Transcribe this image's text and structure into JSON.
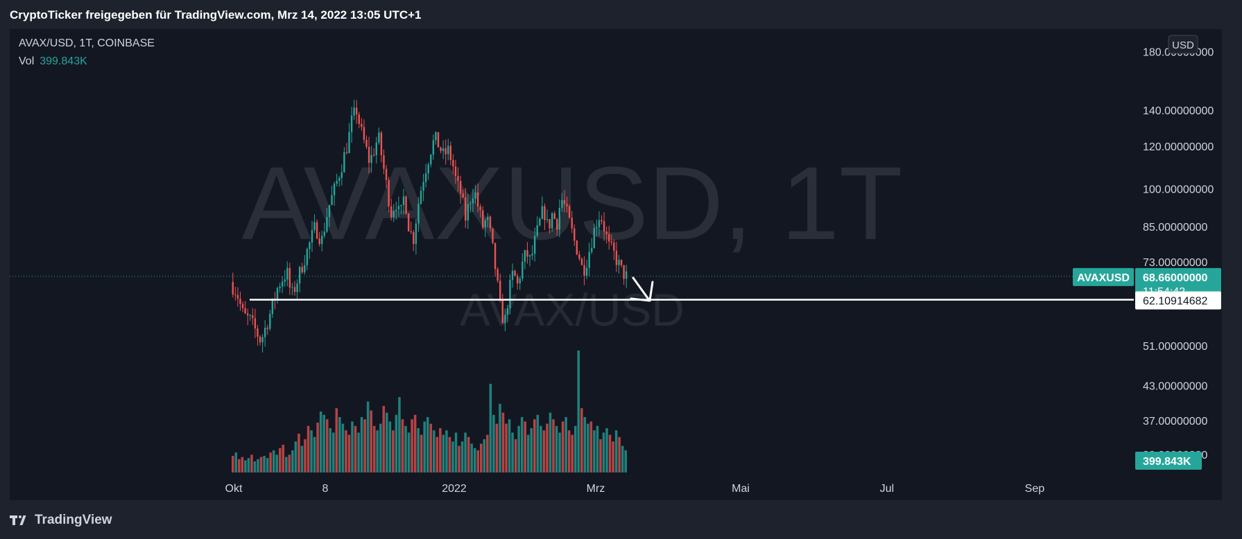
{
  "header": {
    "share_text": "CryptoTicker freigegeben für TradingView.com, Mrz 14, 2022 13:05 UTC+1"
  },
  "legend": {
    "symbol_line": "AVAX/USD, 1T, COINBASE",
    "vol_label": "Vol",
    "vol_value": "399.843K"
  },
  "watermark": {
    "big": "AVAXUSD, 1T",
    "small": "AVAX/USD"
  },
  "currency_button": "USD",
  "footer": {
    "brand": "TradingView"
  },
  "colors": {
    "background": "#131722",
    "frame": "#1e222d",
    "up": "#26a69a",
    "down": "#ef5350",
    "axis_text": "#d1d4dc",
    "annotation": "#ffffff"
  },
  "chart_data": {
    "type": "candlestick",
    "symbol": "AVAX/USD",
    "interval": "1T",
    "exchange": "COINBASE",
    "x_axis_labels": [
      "Okt",
      "8",
      "2022",
      "Mrz",
      "Mai",
      "Jul",
      "Sep"
    ],
    "y_axis": {
      "scale": "log",
      "tick_labels": [
        "180.00000000",
        "140.00000000",
        "120.00000000",
        "100.00000000",
        "85.00000000",
        "73.00000000",
        "51.00000000",
        "43.00000000",
        "37.00000000",
        "32.00000000"
      ],
      "tick_values": [
        180,
        140,
        120,
        100,
        85,
        73,
        51,
        43,
        37,
        32
      ]
    },
    "current_price": {
      "symbol_label": "AVAXUSD",
      "price": "68.66000000",
      "value": 68.66,
      "countdown": "11:54:42"
    },
    "horizontal_line": {
      "label": "62.10914682",
      "value": 62.10914682
    },
    "volume": {
      "label": "399.843K"
    },
    "price_path": [
      [
        0,
        67
      ],
      [
        3,
        64
      ],
      [
        6,
        58
      ],
      [
        9,
        57
      ],
      [
        12,
        54
      ],
      [
        14,
        52
      ],
      [
        16,
        55
      ],
      [
        18,
        58
      ],
      [
        20,
        62
      ],
      [
        22,
        66
      ],
      [
        24,
        68
      ],
      [
        26,
        70
      ],
      [
        28,
        63
      ],
      [
        30,
        66
      ],
      [
        33,
        72
      ],
      [
        36,
        78
      ],
      [
        39,
        85
      ],
      [
        42,
        80
      ],
      [
        45,
        92
      ],
      [
        48,
        100
      ],
      [
        51,
        110
      ],
      [
        54,
        122
      ],
      [
        56,
        135
      ],
      [
        58,
        140
      ],
      [
        60,
        128
      ],
      [
        62,
        120
      ],
      [
        64,
        112
      ],
      [
        66,
        118
      ],
      [
        68,
        125
      ],
      [
        70,
        112
      ],
      [
        72,
        100
      ],
      [
        74,
        90
      ],
      [
        76,
        95
      ],
      [
        78,
        88
      ],
      [
        80,
        98
      ],
      [
        82,
        85
      ],
      [
        84,
        80
      ],
      [
        86,
        92
      ],
      [
        88,
        102
      ],
      [
        90,
        110
      ],
      [
        92,
        118
      ],
      [
        94,
        124
      ],
      [
        96,
        120
      ],
      [
        98,
        115
      ],
      [
        100,
        118
      ],
      [
        102,
        112
      ],
      [
        104,
        102
      ],
      [
        106,
        98
      ],
      [
        108,
        88
      ],
      [
        110,
        95
      ],
      [
        112,
        100
      ],
      [
        114,
        92
      ],
      [
        116,
        85
      ],
      [
        118,
        88
      ],
      [
        120,
        80
      ],
      [
        122,
        70
      ],
      [
        124,
        60
      ],
      [
        126,
        56
      ],
      [
        128,
        64
      ],
      [
        130,
        70
      ],
      [
        132,
        66
      ],
      [
        134,
        72
      ],
      [
        136,
        76
      ],
      [
        138,
        73
      ],
      [
        140,
        80
      ],
      [
        142,
        86
      ],
      [
        144,
        92
      ],
      [
        146,
        84
      ],
      [
        148,
        90
      ],
      [
        150,
        86
      ],
      [
        152,
        96
      ],
      [
        154,
        92
      ],
      [
        156,
        86
      ],
      [
        158,
        80
      ],
      [
        160,
        76
      ],
      [
        162,
        70
      ],
      [
        164,
        74
      ],
      [
        166,
        80
      ],
      [
        168,
        86
      ],
      [
        170,
        90
      ],
      [
        172,
        84
      ],
      [
        174,
        78
      ],
      [
        176,
        76
      ],
      [
        178,
        73
      ],
      [
        180,
        70
      ],
      [
        182,
        68.66
      ]
    ],
    "volume_bars": [
      1.5,
      1.8,
      1.2,
      1.4,
      1.1,
      1.3,
      1.6,
      1.0,
      1.2,
      1.4,
      1.5,
      1.3,
      1.8,
      2.0,
      1.6,
      2.2,
      2.5,
      1.4,
      1.6,
      2.0,
      2.8,
      3.5,
      2.4,
      3.0,
      4.2,
      3.8,
      3.2,
      4.5,
      5.5,
      5.2,
      4.8,
      4.0,
      3.6,
      5.8,
      5.0,
      4.4,
      3.8,
      3.4,
      4.6,
      4.2,
      3.6,
      5.0,
      4.8,
      6.4,
      5.6,
      4.2,
      3.8,
      4.4,
      6.0,
      5.4,
      4.6,
      3.8,
      5.2,
      6.8,
      4.8,
      4.2,
      3.6,
      4.8,
      5.2,
      4.0,
      3.4,
      4.6,
      5.0,
      4.4,
      3.8,
      3.2,
      4.0,
      3.4,
      3.8,
      3.2,
      2.8,
      3.6,
      2.4,
      2.8,
      3.6,
      3.2,
      2.6,
      2.2,
      2.0,
      2.6,
      3.0,
      3.4,
      8.0,
      5.2,
      4.4,
      6.2,
      5.4,
      4.4,
      4.8,
      3.6,
      3.0,
      4.2,
      5.0,
      4.6,
      3.4,
      4.0,
      4.8,
      5.2,
      4.2,
      3.8,
      4.4,
      5.4,
      4.8,
      4.2,
      3.6,
      4.6,
      5.0,
      3.8,
      3.4,
      4.2,
      11.0,
      5.8,
      5.0,
      4.4,
      4.6,
      3.8,
      4.2,
      3.0,
      3.6,
      4.0,
      3.4,
      2.8,
      3.8,
      3.2,
      2.4,
      2.0
    ]
  }
}
